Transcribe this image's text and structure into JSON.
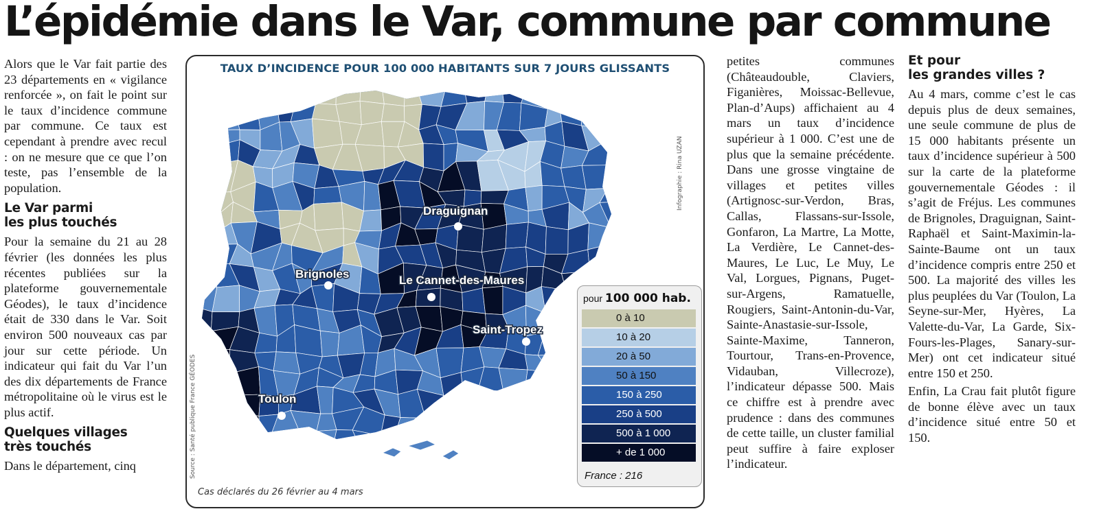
{
  "headline": "L’épidémie dans le Var, commune par commune",
  "col1": {
    "intro": "Alors que le Var fait partie des 23 départements en « vigilance renforcée », on fait le point sur le taux d’incidence commune par commune. Ce taux est cependant à prendre avec recul : on ne mesure que ce que l’on teste, pas l’ensemble de la population.",
    "h1_line1": "Le Var parmi",
    "h1_line2": "les plus touchés",
    "p2": "Pour la semaine du 21 au 28 février (les données les plus récentes publiées sur la plateforme gouvernementale Géodes), le taux d’incidence était de 330 dans le Var. Soit environ 500 nouveaux cas par jour sur cette période. Un indicateur qui fait du Var l’un des dix départements de France métropolitaine où le virus est le plus actif.",
    "h2_line1": "Quelques villages",
    "h2_line2": "très touchés",
    "p3": "Dans le département, cinq"
  },
  "col3": {
    "text": "petites communes (Châteaudouble, Claviers, Figanières, Moissac-Bellevue, Plan-d’Aups) affichaient au 4 mars un taux d’incidence supérieur à 1 000. C’est une de plus que la semaine précédente. Dans une grosse vingtaine de villages et petites villes (Artignosc-sur-Verdon, Bras, Callas, Flassans-sur-Issole, Gonfaron, La Martre, La Motte, La Verdière, Le Cannet-des-Maures, Le Luc, Le Muy, Le Val, Lorgues, Pignans, Puget-sur-Argens, Ramatuelle, Rougiers, Saint-Antonin-du-Var, Sainte-Anastasie-sur-Issole, Sainte-Maxime, Tanneron, Tourtour, Trans-en-Provence, Vidauban, Villecroze), l’indicateur dépasse 500. Mais ce chiffre est à prendre avec prudence : dans des communes de cette taille, un cluster familial peut suffire à faire exploser l’indicateur."
  },
  "col4": {
    "h_line1": "Et pour",
    "h_line2": "les grandes villes ?",
    "p1": "Au 4 mars, comme c’est le cas depuis plus de deux semaines, une seule commune de plus de 15 000 habitants présente un taux d’incidence supérieur à 500 sur la carte de la plateforme gouvernementale Géodes : il s’agit de Fréjus. Les communes de Brignoles, Draguignan, Saint-Raphaël et Saint-Maximin-la-Sainte-Baume ont un taux d’incidence compris entre 250 et 500. La majorité des villes les plus peuplées du Var (Toulon, La Seyne-sur-Mer, Hyères, La Valette-du-Var, La Garde, Six-Fours-les-Plages, Sanary-sur-Mer) ont cet indicateur situé entre 150 et 250.",
    "p2": "Enfin, La Crau fait plutôt figure de bonne élève avec un taux d’incidence situé entre 50 et 150."
  },
  "map": {
    "title": "TAUX D’INCIDENCE POUR 100 000 HABITANTS SUR 7 JOURS GLISSANTS",
    "credit": "Infographie : Rina UZAN",
    "source": "Source : Santé publique France GÉODES",
    "caption": "Cas déclarés du 26 février au 4 mars",
    "cities": [
      "Draguignan",
      "Brignoles",
      "Le Cannet-des-Maures",
      "Saint-Tropez",
      "Toulon"
    ],
    "legend": {
      "title_small": "pour",
      "title_bold": "100 000 hab.",
      "items": [
        {
          "label": "0 à 10",
          "color": "#c9cab0"
        },
        {
          "label": "10 à 20",
          "color": "#b6cfe6"
        },
        {
          "label": "20 à 50",
          "color": "#82aad8"
        },
        {
          "label": "50 à 150",
          "color": "#4f81c2"
        },
        {
          "label": "150 à 250",
          "color": "#2b5da8"
        },
        {
          "label": "250 à 500",
          "color": "#193f86"
        },
        {
          "label": "500 à 1 000",
          "color": "#0f2452"
        },
        {
          "label": "+ de 1 000",
          "color": "#050d26"
        }
      ],
      "footer": "France : 216"
    }
  }
}
